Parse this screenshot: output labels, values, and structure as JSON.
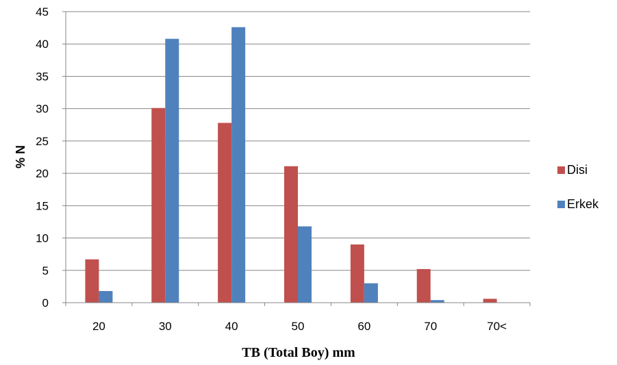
{
  "chart_data": {
    "type": "bar",
    "categories": [
      "20",
      "30",
      "40",
      "50",
      "60",
      "70",
      "70<"
    ],
    "series": [
      {
        "name": "Disi",
        "color": "#C0504D",
        "values": [
          6.7,
          30.1,
          27.8,
          21.1,
          9.0,
          5.2,
          0.6
        ]
      },
      {
        "name": "Erkek",
        "color": "#4F81BD",
        "values": [
          1.8,
          40.8,
          42.6,
          11.8,
          3.0,
          0.4,
          0.0
        ]
      }
    ],
    "xlabel": "TB (Total Boy) mm",
    "ylabel": "% N",
    "ylim": [
      0,
      45
    ],
    "yticks": [
      0,
      5,
      10,
      15,
      20,
      25,
      30,
      35,
      40,
      45
    ],
    "grid": true,
    "legend_position": "right"
  }
}
